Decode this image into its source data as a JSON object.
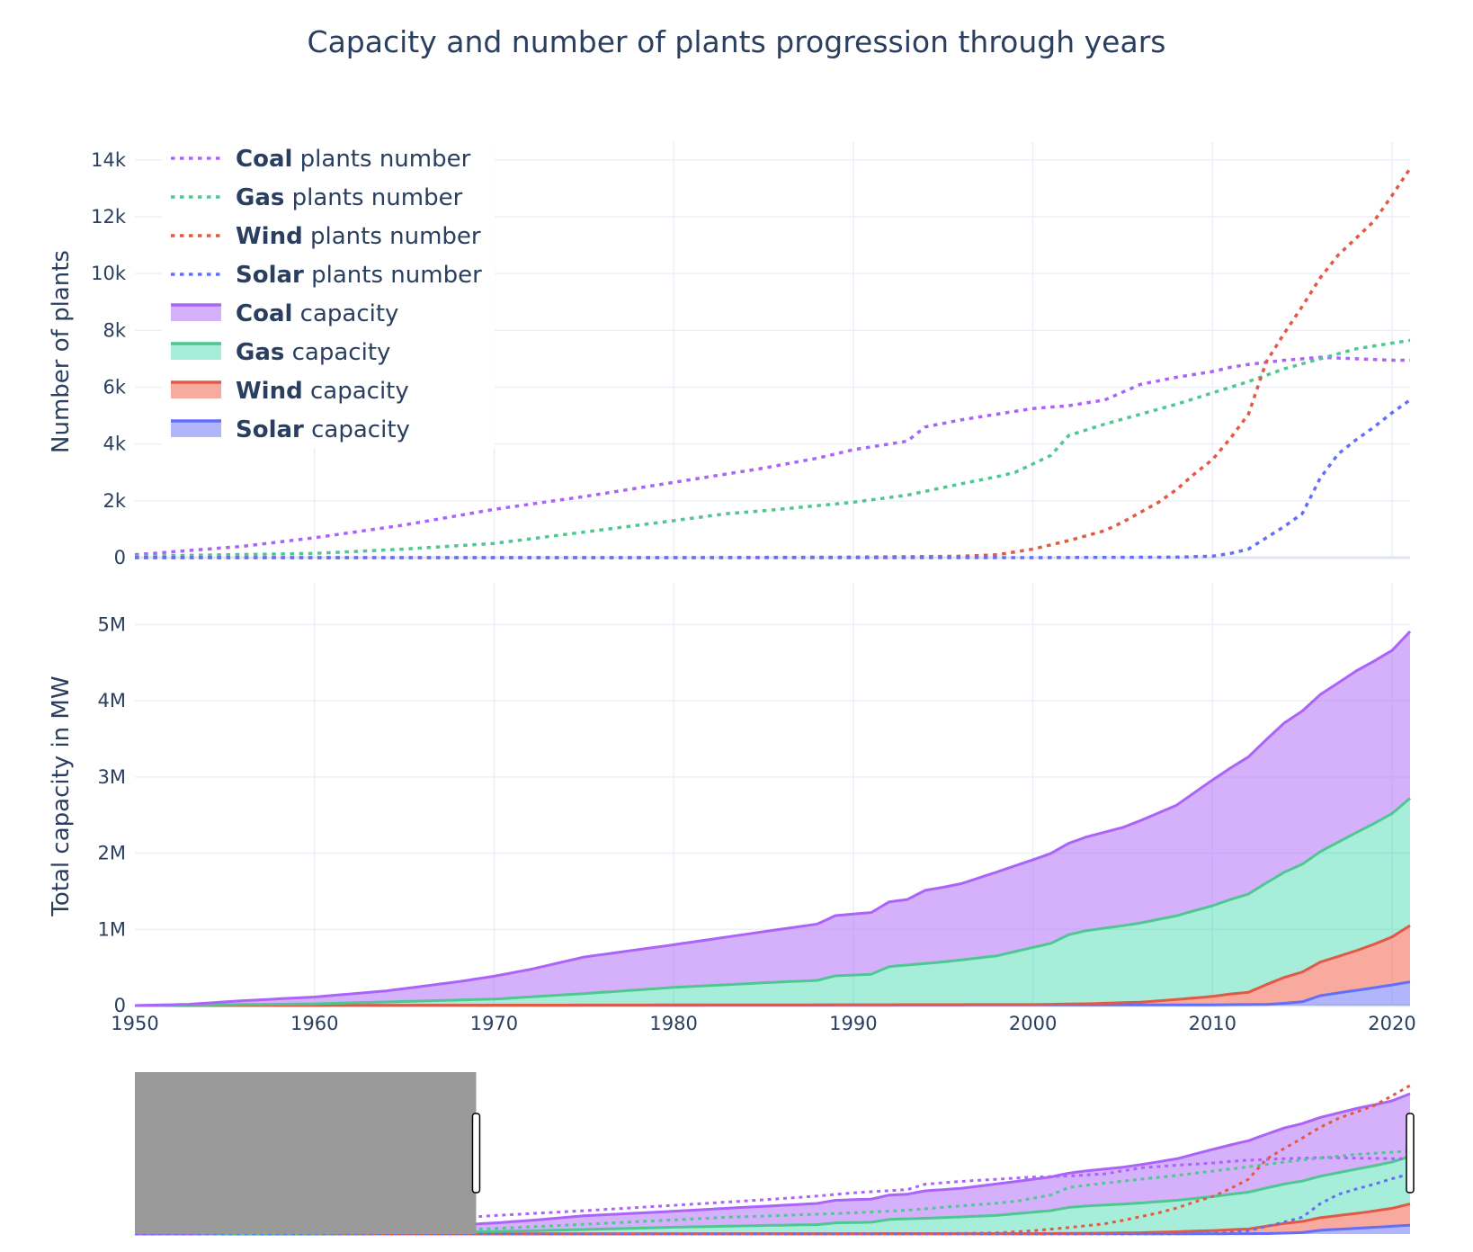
{
  "chart_data": {
    "type": "line",
    "title": "Capacity and number of plants progression through years",
    "x_axis": {
      "range": [
        1950,
        2021
      ],
      "ticks": [
        1950,
        1960,
        1970,
        1980,
        1990,
        2000,
        2010,
        2020
      ],
      "tick_labels": [
        "1950",
        "1960",
        "1970",
        "1980",
        "1990",
        "2000",
        "2010",
        "2020"
      ]
    },
    "panels": [
      {
        "id": "plants",
        "ylabel": "Number of plants",
        "ylim": [
          0,
          14500
        ],
        "y_ticks": [
          0,
          2000,
          4000,
          6000,
          8000,
          10000,
          12000,
          14000
        ],
        "y_tick_labels": [
          "0",
          "2k",
          "4k",
          "6k",
          "8k",
          "10k",
          "12k",
          "14k"
        ],
        "series": [
          {
            "name_bold": "Coal",
            "name_rest": " plants number",
            "color": "#ab63fa",
            "style": "dotted",
            "x": [
              1950,
              1953,
              1956,
              1960,
              1965,
              1970,
              1975,
              1980,
              1985,
              1988,
              1990,
              1992,
              1993,
              1994,
              1996,
              1998,
              2000,
              2002,
              2004,
              2006,
              2008,
              2010,
              2011,
              2012,
              2014,
              2016,
              2018,
              2020,
              2021
            ],
            "y": [
              100,
              250,
              400,
              700,
              1150,
              1700,
              2150,
              2650,
              3150,
              3500,
              3800,
              4000,
              4100,
              4600,
              4850,
              5050,
              5250,
              5350,
              5550,
              6100,
              6350,
              6550,
              6700,
              6800,
              6950,
              7050,
              7000,
              6950,
              6950
            ]
          },
          {
            "name_bold": "Gas",
            "name_rest": " plants number",
            "color": "#4fc790",
            "style": "dotted",
            "x": [
              1950,
              1955,
              1960,
              1965,
              1970,
              1975,
              1980,
              1983,
              1985,
              1990,
              1993,
              1996,
              1998,
              1999,
              2000,
              2001,
              2002,
              2004,
              2006,
              2008,
              2010,
              2012,
              2014,
              2016,
              2018,
              2020,
              2021
            ],
            "y": [
              50,
              100,
              150,
              300,
              500,
              900,
              1300,
              1550,
              1650,
              1950,
              2200,
              2600,
              2850,
              3000,
              3300,
              3600,
              4300,
              4700,
              5050,
              5400,
              5800,
              6200,
              6650,
              7000,
              7350,
              7550,
              7650
            ]
          },
          {
            "name_bold": "Wind",
            "name_rest": " plants number",
            "color": "#e15a46",
            "style": "dotted",
            "x": [
              1950,
              1980,
              1990,
              1996,
              1998,
              2000,
              2002,
              2004,
              2005,
              2006,
              2007,
              2008,
              2009,
              2010,
              2011,
              2012,
              2013,
              2014,
              2015,
              2016,
              2017,
              2018,
              2019,
              2020,
              2021
            ],
            "y": [
              0,
              0,
              20,
              50,
              100,
              300,
              600,
              950,
              1250,
              1600,
              1950,
              2400,
              2950,
              3450,
              4200,
              5050,
              6900,
              7900,
              8850,
              9850,
              10650,
              11250,
              11850,
              12750,
              13700
            ]
          },
          {
            "name_bold": "Solar",
            "name_rest": " plants number",
            "color": "#636efa",
            "style": "dotted",
            "x": [
              1950,
              2000,
              2008,
              2010,
              2011,
              2012,
              2013,
              2014,
              2015,
              2016,
              2017,
              2018,
              2019,
              2020,
              2021
            ],
            "y": [
              0,
              0,
              20,
              50,
              150,
              300,
              700,
              1100,
              1550,
              2800,
              3650,
              4150,
              4600,
              5100,
              5550
            ]
          }
        ]
      },
      {
        "id": "capacity",
        "ylabel": "Total capacity in MW",
        "ylim": [
          0,
          5500000
        ],
        "y_ticks": [
          0,
          1000000,
          2000000,
          3000000,
          4000000,
          5000000
        ],
        "y_tick_labels": [
          "0",
          "1M",
          "2M",
          "3M",
          "4M",
          "5M"
        ],
        "stacked": true,
        "series": [
          {
            "name_bold": "Solar",
            "name_rest": " capacity",
            "color": "#636efa",
            "fill": "rgba(99,110,250,0.5)",
            "x": [
              1950,
              2010,
              2013,
              2014,
              2015,
              2016,
              2018,
              2020,
              2021
            ],
            "y": [
              0,
              10000,
              15000,
              30000,
              50000,
              130000,
              200000,
              270000,
              310000
            ]
          },
          {
            "name_bold": "Wind",
            "name_rest": " capacity",
            "color": "#e15a46",
            "fill": "rgba(239,85,59,0.5)",
            "x": [
              1950,
              2000,
              2003,
              2006,
              2008,
              2010,
              2011,
              2012,
              2013,
              2014,
              2015,
              2016,
              2017,
              2018,
              2019,
              2020,
              2021
            ],
            "y": [
              0,
              5000,
              15000,
              35000,
              70000,
              110000,
              140000,
              160000,
              260000,
              340000,
              390000,
              440000,
              480000,
              520000,
              570000,
              630000,
              740000
            ]
          },
          {
            "name_bold": "Gas",
            "name_rest": " capacity",
            "color": "#4fc790",
            "fill": "rgba(0,204,150,0.35)",
            "x": [
              1950,
              1960,
              1970,
              1975,
              1980,
              1985,
              1988,
              1989,
              1991,
              1992,
              1995,
              1998,
              2000,
              2001,
              2002,
              2003,
              2005,
              2008,
              2010,
              2012,
              2014,
              2016,
              2018,
              2020,
              2021
            ],
            "y": [
              0,
              20000,
              80000,
              150000,
              230000,
              290000,
              320000,
              380000,
              400000,
              500000,
              560000,
              640000,
              750000,
              800000,
              910000,
              960000,
              1010000,
              1100000,
              1190000,
              1290000,
              1380000,
              1450000,
              1550000,
              1620000,
              1670000
            ]
          },
          {
            "name_bold": "Coal",
            "name_rest": " capacity",
            "color": "#ab63fa",
            "fill": "rgba(171,99,250,0.5)",
            "x": [
              1950,
              1953,
              1956,
              1960,
              1964,
              1968,
              1970,
              1972,
              1975,
              1980,
              1985,
              1988,
              1989,
              1991,
              1992,
              1993,
              1994,
              1996,
              1998,
              2000,
              2001,
              2002,
              2003,
              2005,
              2008,
              2010,
              2012,
              2014,
              2016,
              2018,
              2020,
              2021
            ],
            "y": [
              0,
              10000,
              50000,
              90000,
              145000,
              240000,
              300000,
              360000,
              480000,
              560000,
              670000,
              740000,
              790000,
              810000,
              850000,
              860000,
              960000,
              1000000,
              1100000,
              1150000,
              1180000,
              1200000,
              1230000,
              1290000,
              1450000,
              1650000,
              1800000,
              1960000,
              2060000,
              2120000,
              2140000,
              2190000
            ]
          }
        ]
      }
    ],
    "legend": {
      "placement": "top-left",
      "entries": [
        {
          "bold": "Coal",
          "rest": " plants number",
          "color": "#ab63fa",
          "kind": "dotted"
        },
        {
          "bold": "Gas",
          "rest": " plants number",
          "color": "#4fc790",
          "kind": "dotted"
        },
        {
          "bold": "Wind",
          "rest": " plants number",
          "color": "#e15a46",
          "kind": "dotted"
        },
        {
          "bold": "Solar",
          "rest": " plants number",
          "color": "#636efa",
          "kind": "dotted"
        },
        {
          "bold": "Coal",
          "rest": " capacity",
          "color": "#ab63fa",
          "fill": "rgba(171,99,250,0.5)",
          "kind": "area"
        },
        {
          "bold": "Gas",
          "rest": " capacity",
          "color": "#4fc790",
          "fill": "rgba(0,204,150,0.35)",
          "kind": "area"
        },
        {
          "bold": "Wind",
          "rest": " capacity",
          "color": "#e15a46",
          "fill": "rgba(239,85,59,0.5)",
          "kind": "area"
        },
        {
          "bold": "Solar",
          "rest": " capacity",
          "color": "#636efa",
          "fill": "rgba(99,110,250,0.5)",
          "kind": "area"
        }
      ]
    },
    "range_slider": {
      "selected_range": [
        1969,
        2021
      ]
    },
    "grid": true,
    "colors": {
      "text": "#2a3f5f",
      "grid": "#ebf0f8",
      "zero_line": "#dfe6f2",
      "slider_mask": "#999999"
    }
  }
}
